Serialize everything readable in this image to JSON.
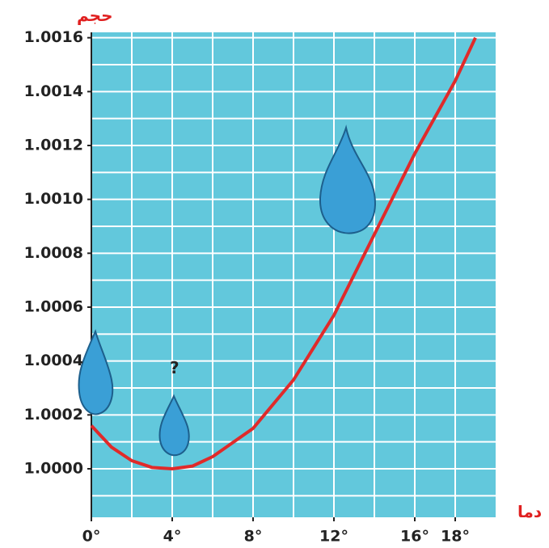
{
  "chart_data": {
    "type": "line",
    "y_label": "حجم",
    "x_label": "دما",
    "x": [
      0,
      1,
      2,
      3,
      4,
      5,
      6,
      8,
      10,
      12,
      14,
      16,
      18,
      19
    ],
    "series": [
      {
        "color": "#e02a2a",
        "values": [
          1.00016,
          1.00008,
          1.00003,
          1.000005,
          1.0,
          1.00001,
          1.000045,
          1.00015,
          1.00033,
          1.00057,
          1.00087,
          1.00117,
          1.00144,
          1.0016
        ]
      }
    ],
    "xlim": [
      0,
      20
    ],
    "ylim": [
      0.99982,
      1.00162
    ],
    "xticks": [
      {
        "value": 0,
        "label": "0°"
      },
      {
        "value": 4,
        "label": "4°"
      },
      {
        "value": 8,
        "label": "8°"
      },
      {
        "value": 12,
        "label": "12°"
      },
      {
        "value": 16,
        "label": "16°"
      },
      {
        "value": 18,
        "label": "18°"
      }
    ],
    "yticks": [
      {
        "value": 1.0,
        "label": "1.0000"
      },
      {
        "value": 1.0002,
        "label": "1.0002"
      },
      {
        "value": 1.0004,
        "label": "1.0004"
      },
      {
        "value": 1.0006,
        "label": "1.0006"
      },
      {
        "value": 1.0008,
        "label": "1.0008"
      },
      {
        "value": 1.001,
        "label": "1.0010"
      },
      {
        "value": 1.0012,
        "label": "1.0012"
      },
      {
        "value": 1.0014,
        "label": "1.0014"
      },
      {
        "value": 1.0016,
        "label": "1.0016"
      }
    ],
    "xgrid": [
      2,
      4,
      6,
      8,
      10,
      12,
      14,
      16,
      18
    ],
    "ygrid": [
      0.9999,
      1.0,
      1.0001,
      1.0002,
      1.0003,
      1.0004,
      1.0005,
      1.0006,
      1.0007,
      1.0008,
      1.0009,
      1.001,
      1.0011,
      1.0012,
      1.0013,
      1.0014,
      1.0015,
      1.0016
    ],
    "grid": true,
    "background": "#62c8dc"
  }
}
